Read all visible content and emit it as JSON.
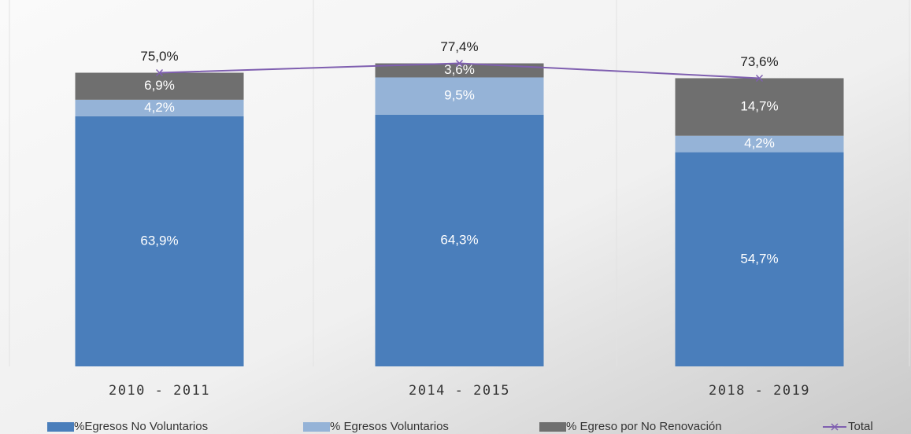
{
  "chart_data": {
    "type": "bar",
    "stacked": true,
    "categories": [
      "2010 - 2011",
      "2014 - 2015",
      "2018 - 2019"
    ],
    "series": [
      {
        "name": "%Egresos No Voluntarios",
        "color": "#4a7ebb",
        "values": [
          63.9,
          64.3,
          54.7
        ],
        "value_labels": [
          "63,9%",
          "64,3%",
          "54,7%"
        ]
      },
      {
        "name": "% Egresos Voluntarios",
        "color": "#95b3d7",
        "values": [
          4.2,
          9.5,
          4.2
        ],
        "value_labels": [
          "4,2%",
          "9,5%",
          "4,2%"
        ]
      },
      {
        "name": "% Egreso por No Renovación",
        "color": "#6f6f6f",
        "values": [
          6.9,
          3.6,
          14.7
        ],
        "value_labels": [
          "6,9%",
          "3,6%",
          "14,7%"
        ]
      },
      {
        "name": "Total",
        "type": "line",
        "color": "#7f5fb0",
        "values": [
          75.0,
          77.4,
          73.6
        ],
        "value_labels": [
          "75,0%",
          "77,4%",
          "73,6%"
        ]
      }
    ]
  }
}
